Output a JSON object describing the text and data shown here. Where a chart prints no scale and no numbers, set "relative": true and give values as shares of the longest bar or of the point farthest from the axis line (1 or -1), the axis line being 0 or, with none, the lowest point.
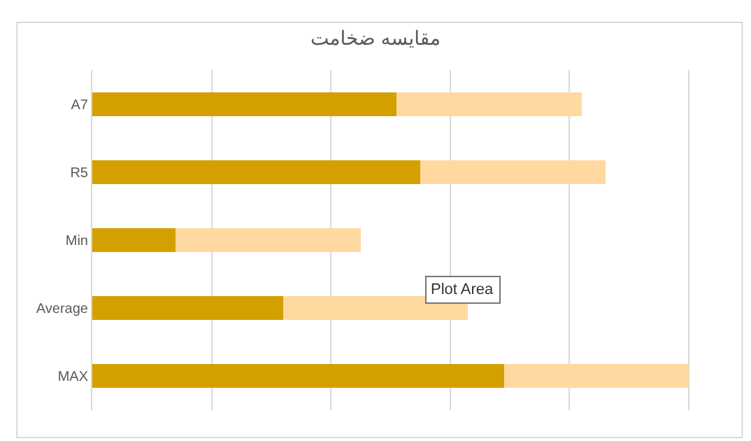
{
  "chart_data": {
    "type": "bar",
    "title": "مقایسه ضخامت",
    "orientation": "horizontal",
    "stacked": true,
    "relative": true,
    "categories": [
      "A7",
      "R5",
      "Min",
      "Average",
      "MAX"
    ],
    "series": [
      {
        "color": "#d4a000",
        "values": [
          0.51,
          0.55,
          0.14,
          0.32,
          0.69
        ]
      },
      {
        "color": "#ffd9a0",
        "values": [
          0.31,
          0.31,
          0.31,
          0.31,
          0.31
        ]
      }
    ],
    "grid": "x",
    "annotations": [
      "Plot Area"
    ]
  }
}
